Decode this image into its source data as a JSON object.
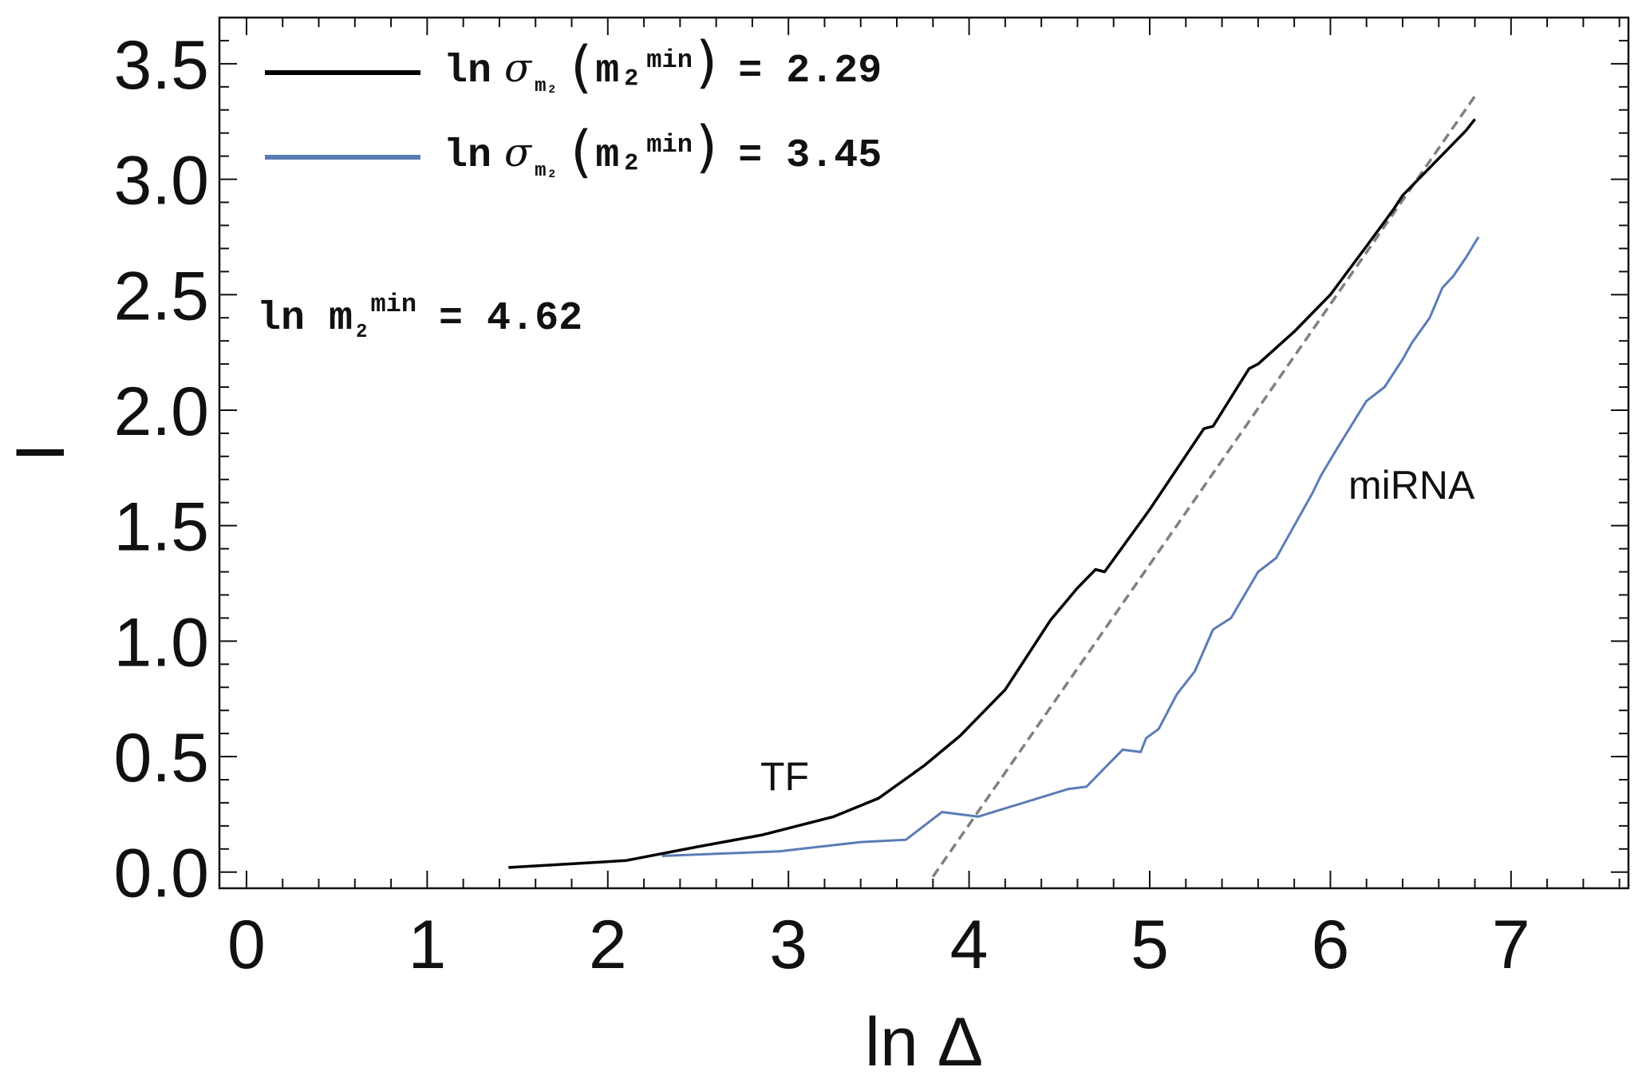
{
  "chart_data": {
    "type": "line",
    "xlabel": "ln Δ",
    "ylabel": "I",
    "xlim": [
      -0.15,
      7.65
    ],
    "ylim": [
      -0.07,
      3.7
    ],
    "xticks": [
      0,
      1,
      2,
      3,
      4,
      5,
      6,
      7
    ],
    "xtick_labels": [
      "0",
      "1",
      "2",
      "3",
      "4",
      "5",
      "6",
      "7"
    ],
    "yticks": [
      0.0,
      0.5,
      1.0,
      1.5,
      2.0,
      2.5,
      3.0,
      3.5
    ],
    "ytick_labels": [
      "0.0",
      "0.5",
      "1.0",
      "1.5",
      "2.0",
      "2.5",
      "3.0",
      "3.5"
    ],
    "series": [
      {
        "name": "TF",
        "legend_prefix": "ln",
        "legend_sigma": "σ",
        "legend_sub": "m₂",
        "legend_arg": "m₂",
        "legend_sup": "min",
        "legend_value": "= 2.29",
        "color": "#000000",
        "x": [
          1.45,
          2.1,
          2.5,
          2.85,
          3.25,
          3.5,
          3.75,
          3.95,
          4.2,
          4.45,
          4.6,
          4.7,
          4.75,
          5.0,
          5.3,
          5.35,
          5.55,
          5.6,
          5.8,
          6.0,
          6.2,
          6.35,
          6.4,
          6.6,
          6.75,
          6.8
        ],
        "y": [
          0.02,
          0.05,
          0.11,
          0.16,
          0.24,
          0.32,
          0.46,
          0.59,
          0.79,
          1.09,
          1.23,
          1.31,
          1.3,
          1.57,
          1.92,
          1.93,
          2.18,
          2.2,
          2.34,
          2.5,
          2.71,
          2.87,
          2.93,
          3.09,
          3.21,
          3.26
        ]
      },
      {
        "name": "miRNA",
        "legend_prefix": "ln",
        "legend_sigma": "σ",
        "legend_sub": "m₂",
        "legend_arg": "m₂",
        "legend_sup": "min",
        "legend_value": "= 3.45",
        "color": "#5b7bb4",
        "x": [
          2.3,
          2.95,
          3.4,
          3.65,
          3.85,
          4.05,
          4.55,
          4.65,
          4.75,
          4.85,
          4.95,
          4.98,
          5.05,
          5.15,
          5.25,
          5.35,
          5.45,
          5.6,
          5.7,
          5.8,
          5.9,
          5.95,
          6.05,
          6.2,
          6.3,
          6.4,
          6.45,
          6.55,
          6.62,
          6.68,
          6.75,
          6.82
        ],
        "y": [
          0.07,
          0.09,
          0.13,
          0.14,
          0.26,
          0.24,
          0.36,
          0.37,
          0.45,
          0.53,
          0.52,
          0.58,
          0.62,
          0.77,
          0.87,
          1.05,
          1.1,
          1.3,
          1.36,
          1.5,
          1.64,
          1.72,
          1.85,
          2.04,
          2.1,
          2.22,
          2.29,
          2.4,
          2.53,
          2.58,
          2.66,
          2.75
        ]
      },
      {
        "name": "fit",
        "color": "#808080",
        "style": "dashed",
        "x": [
          3.8,
          6.8
        ],
        "y": [
          -0.02,
          3.36
        ]
      }
    ],
    "annotations": {
      "m2min": {
        "prefix": "ln m",
        "sub": "2",
        "sup": "min",
        "value": "= 4.62"
      },
      "tf_label": "TF",
      "mirna_label": "miRNA"
    }
  }
}
